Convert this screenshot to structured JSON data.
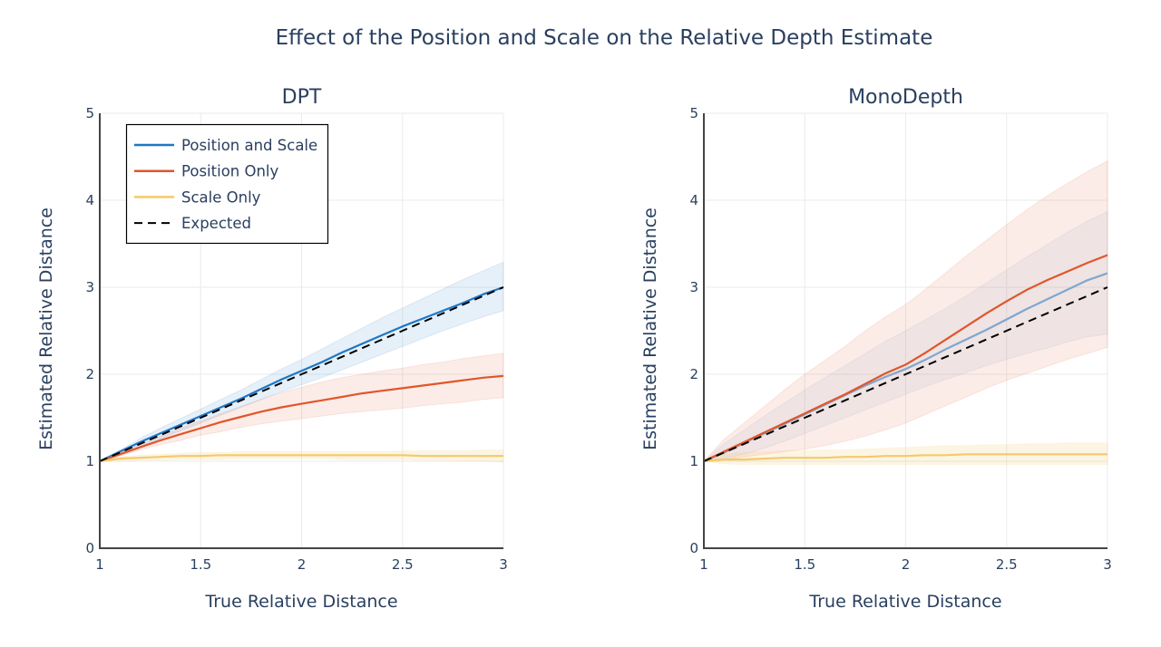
{
  "figure": {
    "title": "Effect of the Position and Scale on the Relative Depth Estimate"
  },
  "colors": {
    "position_and_scale": "#1f77c4",
    "position_and_scale_light": "#7ea7cf",
    "position_only": "#e0562a",
    "scale_only": "#f4c96a",
    "expected": "#000000"
  },
  "legend": {
    "position": "top-left of first panel",
    "items": [
      "Position and Scale",
      "Position Only",
      "Scale Only",
      "Expected"
    ]
  },
  "chart_data": [
    {
      "type": "line",
      "title": "DPT",
      "xlabel": "True Relative Distance",
      "ylabel": "Estimated Relative Distance",
      "xlim": [
        1,
        3
      ],
      "ylim": [
        0,
        5
      ],
      "x_ticks": [
        "1",
        "1.5",
        "2",
        "2.5",
        "3"
      ],
      "y_ticks": [
        "0",
        "1",
        "2",
        "3",
        "4",
        "5"
      ],
      "grid": true,
      "x": [
        1,
        1.1,
        1.2,
        1.3,
        1.4,
        1.5,
        1.6,
        1.7,
        1.8,
        1.9,
        2,
        2.1,
        2.2,
        2.3,
        2.4,
        2.5,
        2.6,
        2.7,
        2.8,
        2.9,
        3
      ],
      "series": [
        {
          "name": "Position and Scale",
          "color_key": "position_and_scale",
          "dash": "solid",
          "values": [
            1,
            1.11,
            1.22,
            1.32,
            1.42,
            1.52,
            1.62,
            1.72,
            1.83,
            1.94,
            2.04,
            2.14,
            2.25,
            2.35,
            2.45,
            2.55,
            2.64,
            2.73,
            2.82,
            2.92,
            3.0
          ],
          "lower": [
            1,
            1.08,
            1.17,
            1.26,
            1.35,
            1.44,
            1.53,
            1.62,
            1.71,
            1.8,
            1.88,
            1.96,
            2.05,
            2.14,
            2.23,
            2.32,
            2.41,
            2.5,
            2.58,
            2.66,
            2.73
          ],
          "upper": [
            1,
            1.13,
            1.26,
            1.38,
            1.49,
            1.6,
            1.71,
            1.82,
            1.94,
            2.06,
            2.17,
            2.29,
            2.41,
            2.53,
            2.65,
            2.76,
            2.87,
            2.98,
            3.09,
            3.19,
            3.29
          ]
        },
        {
          "name": "Position Only",
          "color_key": "position_only",
          "dash": "solid",
          "values": [
            1,
            1.08,
            1.16,
            1.24,
            1.31,
            1.38,
            1.45,
            1.51,
            1.57,
            1.62,
            1.66,
            1.7,
            1.74,
            1.78,
            1.81,
            1.84,
            1.87,
            1.9,
            1.93,
            1.96,
            1.98
          ],
          "lower": [
            1,
            1.06,
            1.13,
            1.19,
            1.24,
            1.3,
            1.34,
            1.39,
            1.43,
            1.46,
            1.49,
            1.52,
            1.55,
            1.57,
            1.59,
            1.61,
            1.64,
            1.66,
            1.68,
            1.71,
            1.73
          ],
          "upper": [
            1,
            1.1,
            1.19,
            1.29,
            1.38,
            1.46,
            1.55,
            1.63,
            1.71,
            1.79,
            1.85,
            1.91,
            1.96,
            2.0,
            2.04,
            2.07,
            2.11,
            2.14,
            2.18,
            2.21,
            2.24
          ]
        },
        {
          "name": "Scale Only",
          "color_key": "scale_only",
          "dash": "solid",
          "values": [
            1,
            1.03,
            1.04,
            1.05,
            1.06,
            1.06,
            1.07,
            1.07,
            1.07,
            1.07,
            1.07,
            1.07,
            1.07,
            1.07,
            1.07,
            1.07,
            1.06,
            1.06,
            1.06,
            1.06,
            1.06
          ],
          "lower": [
            1,
            1.0,
            1.01,
            1.01,
            1.02,
            1.02,
            1.02,
            1.03,
            1.03,
            1.03,
            1.03,
            1.03,
            1.02,
            1.02,
            1.02,
            1.02,
            1.01,
            1.01,
            1.0,
            1.0,
            0.99
          ],
          "upper": [
            1,
            1.05,
            1.07,
            1.08,
            1.09,
            1.1,
            1.1,
            1.11,
            1.11,
            1.11,
            1.11,
            1.11,
            1.11,
            1.11,
            1.11,
            1.12,
            1.12,
            1.12,
            1.12,
            1.13,
            1.13
          ]
        },
        {
          "name": "Expected",
          "color_key": "expected",
          "dash": "dashed",
          "values": [
            1,
            1.1,
            1.2,
            1.3,
            1.4,
            1.5,
            1.6,
            1.7,
            1.8,
            1.9,
            2,
            2.1,
            2.2,
            2.3,
            2.4,
            2.5,
            2.6,
            2.7,
            2.8,
            2.9,
            3
          ]
        }
      ]
    },
    {
      "type": "line",
      "title": "MonoDepth",
      "xlabel": "True Relative Distance",
      "ylabel": "Estimated Relative Distance",
      "xlim": [
        1,
        3
      ],
      "ylim": [
        0,
        5
      ],
      "x_ticks": [
        "1",
        "1.5",
        "2",
        "2.5",
        "3"
      ],
      "y_ticks": [
        "0",
        "1",
        "2",
        "3",
        "4",
        "5"
      ],
      "grid": true,
      "x": [
        1,
        1.1,
        1.2,
        1.3,
        1.4,
        1.5,
        1.6,
        1.7,
        1.8,
        1.9,
        2,
        2.1,
        2.2,
        2.3,
        2.4,
        2.5,
        2.6,
        2.7,
        2.8,
        2.9,
        3
      ],
      "series": [
        {
          "name": "Position and Scale",
          "color_key": "position_and_scale_light",
          "dash": "solid",
          "values": [
            1,
            1.1,
            1.21,
            1.32,
            1.43,
            1.54,
            1.65,
            1.76,
            1.87,
            1.97,
            2.06,
            2.17,
            2.29,
            2.4,
            2.51,
            2.63,
            2.75,
            2.86,
            2.97,
            3.08,
            3.16
          ],
          "lower": [
            1,
            1.03,
            1.08,
            1.15,
            1.23,
            1.32,
            1.41,
            1.5,
            1.59,
            1.68,
            1.77,
            1.86,
            1.94,
            2.02,
            2.1,
            2.17,
            2.24,
            2.3,
            2.37,
            2.43,
            2.46
          ],
          "upper": [
            1,
            1.2,
            1.36,
            1.52,
            1.67,
            1.82,
            1.96,
            2.1,
            2.24,
            2.38,
            2.5,
            2.63,
            2.76,
            2.9,
            3.05,
            3.2,
            3.35,
            3.49,
            3.63,
            3.76,
            3.87
          ]
        },
        {
          "name": "Position Only",
          "color_key": "position_only",
          "dash": "solid",
          "values": [
            1,
            1.11,
            1.22,
            1.33,
            1.44,
            1.55,
            1.66,
            1.77,
            1.89,
            2.01,
            2.11,
            2.25,
            2.4,
            2.55,
            2.7,
            2.84,
            2.97,
            3.08,
            3.18,
            3.28,
            3.37
          ],
          "lower": [
            1,
            1.02,
            1.05,
            1.08,
            1.11,
            1.14,
            1.18,
            1.23,
            1.29,
            1.36,
            1.44,
            1.54,
            1.64,
            1.74,
            1.84,
            1.93,
            2.01,
            2.09,
            2.17,
            2.24,
            2.31
          ],
          "upper": [
            1,
            1.25,
            1.44,
            1.63,
            1.82,
            2.0,
            2.16,
            2.32,
            2.5,
            2.66,
            2.8,
            2.98,
            3.17,
            3.36,
            3.54,
            3.72,
            3.89,
            4.05,
            4.19,
            4.33,
            4.45
          ]
        },
        {
          "name": "Scale Only",
          "color_key": "scale_only",
          "dash": "solid",
          "values": [
            1,
            1.02,
            1.02,
            1.03,
            1.04,
            1.04,
            1.04,
            1.05,
            1.05,
            1.06,
            1.06,
            1.07,
            1.07,
            1.08,
            1.08,
            1.08,
            1.08,
            1.08,
            1.08,
            1.08,
            1.08
          ],
          "lower": [
            1,
            0.97,
            0.96,
            0.96,
            0.96,
            0.96,
            0.96,
            0.96,
            0.96,
            0.96,
            0.96,
            0.96,
            0.96,
            0.96,
            0.96,
            0.96,
            0.96,
            0.96,
            0.96,
            0.96,
            0.96
          ],
          "upper": [
            1,
            1.08,
            1.1,
            1.11,
            1.12,
            1.12,
            1.13,
            1.13,
            1.14,
            1.15,
            1.16,
            1.17,
            1.18,
            1.18,
            1.19,
            1.19,
            1.2,
            1.2,
            1.21,
            1.21,
            1.21
          ]
        },
        {
          "name": "Expected",
          "color_key": "expected",
          "dash": "dashed",
          "values": [
            1,
            1.1,
            1.2,
            1.3,
            1.4,
            1.5,
            1.6,
            1.7,
            1.8,
            1.9,
            2,
            2.1,
            2.2,
            2.3,
            2.4,
            2.5,
            2.6,
            2.7,
            2.8,
            2.9,
            3
          ]
        }
      ]
    }
  ]
}
